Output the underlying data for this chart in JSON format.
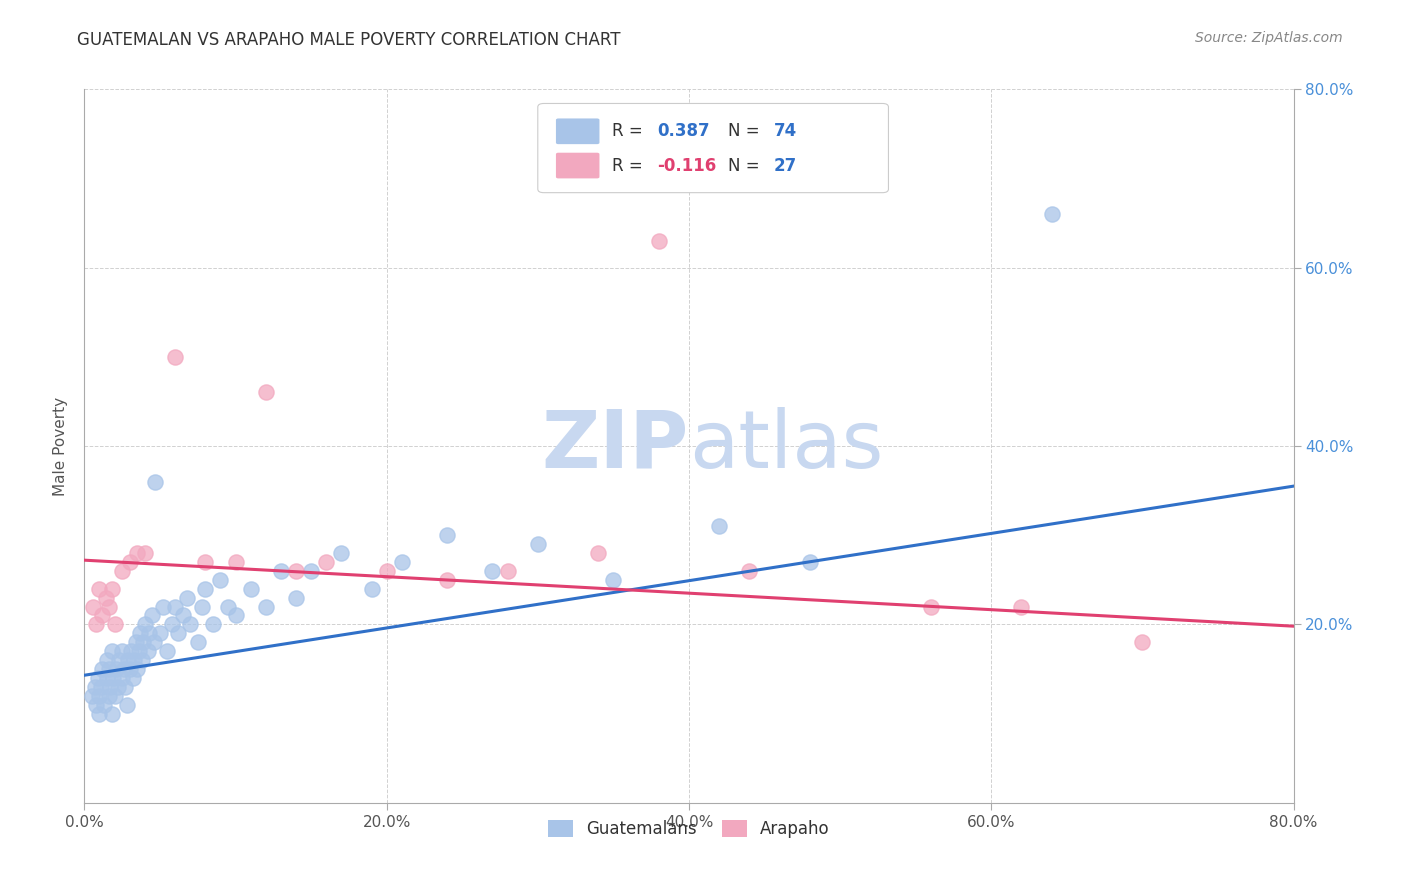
{
  "title": "GUATEMALAN VS ARAPAHO MALE POVERTY CORRELATION CHART",
  "source": "Source: ZipAtlas.com",
  "xlabel": "",
  "ylabel": "Male Poverty",
  "xlim": [
    0.0,
    0.8
  ],
  "ylim": [
    0.0,
    0.8
  ],
  "xtick_labels": [
    "0.0%",
    "20.0%",
    "40.0%",
    "60.0%",
    "80.0%"
  ],
  "xtick_vals": [
    0.0,
    0.2,
    0.4,
    0.6,
    0.8
  ],
  "ytick_labels_right": [
    "80.0%",
    "60.0%",
    "40.0%",
    "20.0%"
  ],
  "ytick_vals_right": [
    0.8,
    0.6,
    0.4,
    0.2
  ],
  "guatemalan_color": "#a8c4e8",
  "arapaho_color": "#f2a8bf",
  "guatemalan_line_color": "#3070c8",
  "arapaho_line_color": "#e04070",
  "watermark_color": "#c8d8f0",
  "legend_label1": "Guatemalans",
  "legend_label2": "Arapaho",
  "guatemalan_x": [
    0.005,
    0.007,
    0.008,
    0.009,
    0.01,
    0.01,
    0.011,
    0.012,
    0.013,
    0.015,
    0.015,
    0.016,
    0.016,
    0.017,
    0.018,
    0.018,
    0.019,
    0.02,
    0.021,
    0.022,
    0.023,
    0.025,
    0.025,
    0.026,
    0.027,
    0.028,
    0.029,
    0.03,
    0.031,
    0.032,
    0.033,
    0.034,
    0.035,
    0.036,
    0.037,
    0.038,
    0.039,
    0.04,
    0.042,
    0.043,
    0.045,
    0.046,
    0.047,
    0.05,
    0.052,
    0.055,
    0.058,
    0.06,
    0.062,
    0.065,
    0.068,
    0.07,
    0.075,
    0.078,
    0.08,
    0.085,
    0.09,
    0.095,
    0.1,
    0.11,
    0.12,
    0.13,
    0.14,
    0.15,
    0.17,
    0.19,
    0.21,
    0.24,
    0.27,
    0.3,
    0.35,
    0.42,
    0.48,
    0.64
  ],
  "guatemalan_y": [
    0.12,
    0.13,
    0.11,
    0.14,
    0.1,
    0.12,
    0.13,
    0.15,
    0.11,
    0.14,
    0.16,
    0.12,
    0.15,
    0.13,
    0.1,
    0.17,
    0.14,
    0.12,
    0.15,
    0.13,
    0.16,
    0.14,
    0.17,
    0.15,
    0.13,
    0.11,
    0.16,
    0.15,
    0.17,
    0.14,
    0.16,
    0.18,
    0.15,
    0.17,
    0.19,
    0.16,
    0.18,
    0.2,
    0.17,
    0.19,
    0.21,
    0.18,
    0.36,
    0.19,
    0.22,
    0.17,
    0.2,
    0.22,
    0.19,
    0.21,
    0.23,
    0.2,
    0.18,
    0.22,
    0.24,
    0.2,
    0.25,
    0.22,
    0.21,
    0.24,
    0.22,
    0.26,
    0.23,
    0.26,
    0.28,
    0.24,
    0.27,
    0.3,
    0.26,
    0.29,
    0.25,
    0.31,
    0.27,
    0.66
  ],
  "arapaho_x": [
    0.006,
    0.008,
    0.01,
    0.012,
    0.014,
    0.016,
    0.018,
    0.02,
    0.025,
    0.03,
    0.035,
    0.04,
    0.06,
    0.08,
    0.1,
    0.12,
    0.14,
    0.16,
    0.2,
    0.24,
    0.28,
    0.34,
    0.38,
    0.44,
    0.56,
    0.62,
    0.7
  ],
  "arapaho_y": [
    0.22,
    0.2,
    0.24,
    0.21,
    0.23,
    0.22,
    0.24,
    0.2,
    0.26,
    0.27,
    0.28,
    0.28,
    0.5,
    0.27,
    0.27,
    0.46,
    0.26,
    0.27,
    0.26,
    0.25,
    0.26,
    0.28,
    0.63,
    0.26,
    0.22,
    0.22,
    0.18
  ],
  "trend_blue_x0": 0.0,
  "trend_blue_y0": 0.143,
  "trend_blue_x1": 0.8,
  "trend_blue_y1": 0.355,
  "trend_pink_x0": 0.0,
  "trend_pink_y0": 0.272,
  "trend_pink_x1": 0.8,
  "trend_pink_y1": 0.198
}
